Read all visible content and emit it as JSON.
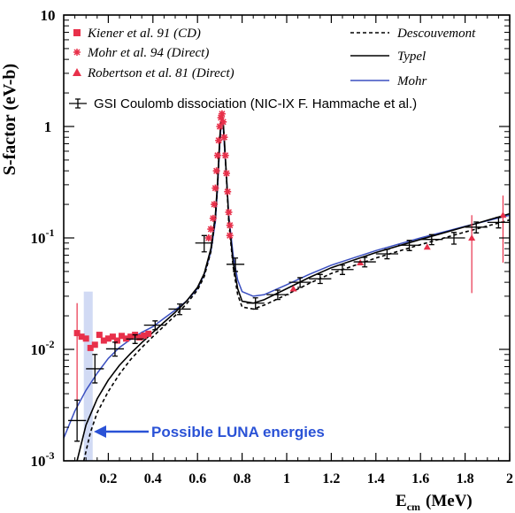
{
  "chart_data": {
    "type": "line",
    "scale": {
      "y": "log",
      "x": "linear"
    },
    "xlim": [
      0.0,
      2.0
    ],
    "ylim": [
      0.001,
      10
    ],
    "xlabel_main": "E",
    "xlabel_sub": "cm",
    "xlabel_unit": "(MeV)",
    "ylabel": "S-factor (eV-b)",
    "x_ticks": [
      {
        "value": 0.2,
        "label": "0.2"
      },
      {
        "value": 0.4,
        "label": "0.4"
      },
      {
        "value": 0.6,
        "label": "0.6"
      },
      {
        "value": 0.8,
        "label": "0.8"
      },
      {
        "value": 1.0,
        "label": "1"
      },
      {
        "value": 1.2,
        "label": "1.2"
      },
      {
        "value": 1.4,
        "label": "1.4"
      },
      {
        "value": 1.6,
        "label": "1.6"
      },
      {
        "value": 1.8,
        "label": "1.8"
      },
      {
        "value": 2.0,
        "label": "2"
      }
    ],
    "y_ticks": [
      {
        "value": 10,
        "base": "10",
        "exp": ""
      },
      {
        "value": 1,
        "base": "1",
        "exp": ""
      },
      {
        "value": 0.1,
        "base": "10",
        "exp": "-1"
      },
      {
        "value": 0.01,
        "base": "10",
        "exp": "-2"
      },
      {
        "value": 0.001,
        "base": "10",
        "exp": "-3"
      }
    ],
    "legend_left": [
      {
        "label": "Kiener et al. 91 (CD)",
        "marker": "square",
        "color": "#e8304a"
      },
      {
        "label": "Mohr et al. 94 (Direct)",
        "marker": "asterisk",
        "color": "#e8304a"
      },
      {
        "label": "Robertson et al. 81 (Direct)",
        "marker": "triangle",
        "color": "#e8304a"
      }
    ],
    "legend_right": [
      {
        "label": "Descouvemont",
        "style": "dashed",
        "color": "#000000"
      },
      {
        "label": "Typel",
        "style": "solid",
        "color": "#000000"
      },
      {
        "label": "Mohr",
        "style": "solid",
        "color": "#3a4fc0"
      }
    ],
    "legend_gsi": "GSI Coulomb dissociation (NIC-IX F. Hammache et al.)",
    "curves": [
      {
        "name": "Mohr",
        "color": "#3a4fc0",
        "style": "solid",
        "points": [
          [
            0.0,
            0.0016
          ],
          [
            0.05,
            0.0028
          ],
          [
            0.1,
            0.0043
          ],
          [
            0.15,
            0.0061
          ],
          [
            0.2,
            0.0083
          ],
          [
            0.25,
            0.0104
          ],
          [
            0.3,
            0.0123
          ],
          [
            0.35,
            0.0142
          ],
          [
            0.4,
            0.016
          ],
          [
            0.45,
            0.019
          ],
          [
            0.5,
            0.0225
          ],
          [
            0.55,
            0.027
          ],
          [
            0.6,
            0.035
          ],
          [
            0.63,
            0.047
          ],
          [
            0.66,
            0.075
          ],
          [
            0.68,
            0.14
          ],
          [
            0.69,
            0.28
          ],
          [
            0.7,
            0.7
          ],
          [
            0.705,
            1.0
          ],
          [
            0.71,
            1.15
          ],
          [
            0.715,
            1.0
          ],
          [
            0.72,
            0.7
          ],
          [
            0.73,
            0.35
          ],
          [
            0.74,
            0.16
          ],
          [
            0.76,
            0.07
          ],
          [
            0.78,
            0.042
          ],
          [
            0.8,
            0.033
          ],
          [
            0.85,
            0.03
          ],
          [
            0.9,
            0.031
          ],
          [
            1.0,
            0.038
          ],
          [
            1.1,
            0.047
          ],
          [
            1.2,
            0.057
          ],
          [
            1.4,
            0.077
          ],
          [
            1.6,
            0.1
          ],
          [
            1.8,
            0.127
          ],
          [
            2.0,
            0.16
          ]
        ]
      },
      {
        "name": "Typel",
        "color": "#000000",
        "style": "solid",
        "points": [
          [
            0.06,
            0.001
          ],
          [
            0.1,
            0.0021
          ],
          [
            0.15,
            0.0036
          ],
          [
            0.2,
            0.0053
          ],
          [
            0.25,
            0.0072
          ],
          [
            0.3,
            0.0092
          ],
          [
            0.35,
            0.0115
          ],
          [
            0.4,
            0.0142
          ],
          [
            0.45,
            0.0175
          ],
          [
            0.5,
            0.0215
          ],
          [
            0.55,
            0.027
          ],
          [
            0.6,
            0.036
          ],
          [
            0.63,
            0.048
          ],
          [
            0.66,
            0.08
          ],
          [
            0.68,
            0.16
          ],
          [
            0.69,
            0.32
          ],
          [
            0.7,
            0.8
          ],
          [
            0.705,
            1.1
          ],
          [
            0.71,
            1.3
          ],
          [
            0.715,
            1.1
          ],
          [
            0.72,
            0.8
          ],
          [
            0.73,
            0.35
          ],
          [
            0.74,
            0.15
          ],
          [
            0.76,
            0.06
          ],
          [
            0.78,
            0.035
          ],
          [
            0.8,
            0.027
          ],
          [
            0.85,
            0.026
          ],
          [
            0.9,
            0.028
          ],
          [
            1.0,
            0.035
          ],
          [
            1.1,
            0.044
          ],
          [
            1.2,
            0.054
          ],
          [
            1.4,
            0.074
          ],
          [
            1.6,
            0.097
          ],
          [
            1.8,
            0.126
          ],
          [
            2.0,
            0.165
          ]
        ]
      },
      {
        "name": "Descouvemont",
        "color": "#000000",
        "style": "dashed",
        "points": [
          [
            0.09,
            0.001
          ],
          [
            0.12,
            0.0018
          ],
          [
            0.15,
            0.0027
          ],
          [
            0.2,
            0.0042
          ],
          [
            0.25,
            0.006
          ],
          [
            0.3,
            0.0081
          ],
          [
            0.35,
            0.0104
          ],
          [
            0.4,
            0.013
          ],
          [
            0.45,
            0.0162
          ],
          [
            0.5,
            0.0201
          ],
          [
            0.55,
            0.0255
          ],
          [
            0.6,
            0.034
          ],
          [
            0.63,
            0.045
          ],
          [
            0.66,
            0.075
          ],
          [
            0.68,
            0.15
          ],
          [
            0.69,
            0.3
          ],
          [
            0.7,
            0.75
          ],
          [
            0.705,
            1.05
          ],
          [
            0.71,
            1.25
          ],
          [
            0.715,
            1.05
          ],
          [
            0.72,
            0.75
          ],
          [
            0.73,
            0.33
          ],
          [
            0.74,
            0.14
          ],
          [
            0.76,
            0.055
          ],
          [
            0.78,
            0.031
          ],
          [
            0.8,
            0.024
          ],
          [
            0.85,
            0.023
          ],
          [
            0.9,
            0.025
          ],
          [
            1.0,
            0.031
          ],
          [
            1.1,
            0.039
          ],
          [
            1.2,
            0.048
          ],
          [
            1.4,
            0.066
          ],
          [
            1.6,
            0.087
          ],
          [
            1.8,
            0.113
          ],
          [
            2.0,
            0.145
          ]
        ]
      }
    ],
    "gsi_points": [
      {
        "x": 0.06,
        "y": 0.0023,
        "xerr": 0.04,
        "yerr": [
          0.0008,
          0.0012
        ]
      },
      {
        "x": 0.14,
        "y": 0.0067,
        "xerr": 0.04,
        "yerr": [
          0.0017,
          0.0023
        ]
      },
      {
        "x": 0.23,
        "y": 0.0101,
        "xerr": 0.04,
        "yerr": [
          0.0014,
          0.0015
        ]
      },
      {
        "x": 0.32,
        "y": 0.0124,
        "xerr": 0.04,
        "yerr": [
          0.0011,
          0.0011
        ]
      },
      {
        "x": 0.41,
        "y": 0.0165,
        "xerr": 0.05,
        "yerr": [
          0.0015,
          0.0015
        ]
      },
      {
        "x": 0.52,
        "y": 0.023,
        "xerr": 0.05,
        "yerr": [
          0.0025,
          0.0025
        ]
      },
      {
        "x": 0.63,
        "y": 0.09,
        "xerr": 0.04,
        "yerr": [
          0.015,
          0.015
        ]
      },
      {
        "x": 0.77,
        "y": 0.058,
        "xerr": 0.04,
        "yerr": [
          0.008,
          0.008
        ]
      },
      {
        "x": 0.86,
        "y": 0.026,
        "xerr": 0.04,
        "yerr": [
          0.003,
          0.003
        ]
      },
      {
        "x": 0.96,
        "y": 0.031,
        "xerr": 0.05,
        "yerr": [
          0.003,
          0.003
        ]
      },
      {
        "x": 1.06,
        "y": 0.04,
        "xerr": 0.05,
        "yerr": [
          0.004,
          0.004
        ]
      },
      {
        "x": 1.15,
        "y": 0.043,
        "xerr": 0.05,
        "yerr": [
          0.004,
          0.004
        ]
      },
      {
        "x": 1.25,
        "y": 0.052,
        "xerr": 0.05,
        "yerr": [
          0.005,
          0.005
        ]
      },
      {
        "x": 1.35,
        "y": 0.061,
        "xerr": 0.05,
        "yerr": [
          0.006,
          0.006
        ]
      },
      {
        "x": 1.45,
        "y": 0.072,
        "xerr": 0.05,
        "yerr": [
          0.007,
          0.007
        ]
      },
      {
        "x": 1.55,
        "y": 0.086,
        "xerr": 0.05,
        "yerr": [
          0.009,
          0.009
        ]
      },
      {
        "x": 1.65,
        "y": 0.097,
        "xerr": 0.05,
        "yerr": [
          0.01,
          0.01
        ]
      },
      {
        "x": 1.75,
        "y": 0.1,
        "xerr": 0.05,
        "yerr": [
          0.012,
          0.012
        ]
      },
      {
        "x": 1.85,
        "y": 0.125,
        "xerr": 0.05,
        "yerr": [
          0.014,
          0.014
        ]
      },
      {
        "x": 1.95,
        "y": 0.138,
        "xerr": 0.05,
        "yerr": [
          0.015,
          0.015
        ]
      }
    ],
    "kiener_points": [
      {
        "x": 0.06,
        "y": 0.014,
        "yerr": [
          0.011,
          0.012
        ]
      },
      {
        "x": 0.08,
        "y": 0.013
      },
      {
        "x": 0.1,
        "y": 0.0125
      },
      {
        "x": 0.12,
        "y": 0.0103
      },
      {
        "x": 0.14,
        "y": 0.011
      },
      {
        "x": 0.16,
        "y": 0.0135
      },
      {
        "x": 0.18,
        "y": 0.012
      },
      {
        "x": 0.2,
        "y": 0.0125
      },
      {
        "x": 0.22,
        "y": 0.013
      },
      {
        "x": 0.24,
        "y": 0.012
      },
      {
        "x": 0.26,
        "y": 0.0132
      },
      {
        "x": 0.28,
        "y": 0.0125
      },
      {
        "x": 0.3,
        "y": 0.013
      },
      {
        "x": 0.32,
        "y": 0.0135
      },
      {
        "x": 0.34,
        "y": 0.0128
      },
      {
        "x": 0.36,
        "y": 0.0133
      },
      {
        "x": 0.38,
        "y": 0.0138
      }
    ],
    "mohr_points": [
      {
        "x": 0.65,
        "y": 0.1
      },
      {
        "x": 0.66,
        "y": 0.12
      },
      {
        "x": 0.67,
        "y": 0.15
      },
      {
        "x": 0.675,
        "y": 0.2
      },
      {
        "x": 0.68,
        "y": 0.28
      },
      {
        "x": 0.685,
        "y": 0.4
      },
      {
        "x": 0.69,
        "y": 0.55
      },
      {
        "x": 0.695,
        "y": 0.75
      },
      {
        "x": 0.7,
        "y": 1.0
      },
      {
        "x": 0.705,
        "y": 1.2
      },
      {
        "x": 0.71,
        "y": 1.3
      },
      {
        "x": 0.715,
        "y": 1.1
      },
      {
        "x": 0.72,
        "y": 0.8
      },
      {
        "x": 0.725,
        "y": 0.55
      },
      {
        "x": 0.73,
        "y": 0.38
      },
      {
        "x": 0.735,
        "y": 0.26
      },
      {
        "x": 0.74,
        "y": 0.17
      },
      {
        "x": 0.745,
        "y": 0.13
      },
      {
        "x": 0.745,
        "y": 0.105
      }
    ],
    "robertson_points": [
      {
        "x": 1.03,
        "y": 0.035
      },
      {
        "x": 1.33,
        "y": 0.06
      },
      {
        "x": 1.63,
        "y": 0.083
      },
      {
        "x": 1.83,
        "y": 0.1,
        "yerr": [
          0.068,
          0.06
        ]
      },
      {
        "x": 1.97,
        "y": 0.16,
        "yerr": [
          0.1,
          0.08
        ]
      }
    ],
    "luna_band": {
      "x_min": 0.09,
      "x_max": 0.13,
      "y_min": 0.001,
      "y_max": 0.033
    },
    "luna_label": "Possible LUNA energies"
  },
  "colors": {
    "luna_band": "#c9d3f2",
    "luna_arrow": "#2a52d6",
    "data_red": "#e8304a"
  }
}
